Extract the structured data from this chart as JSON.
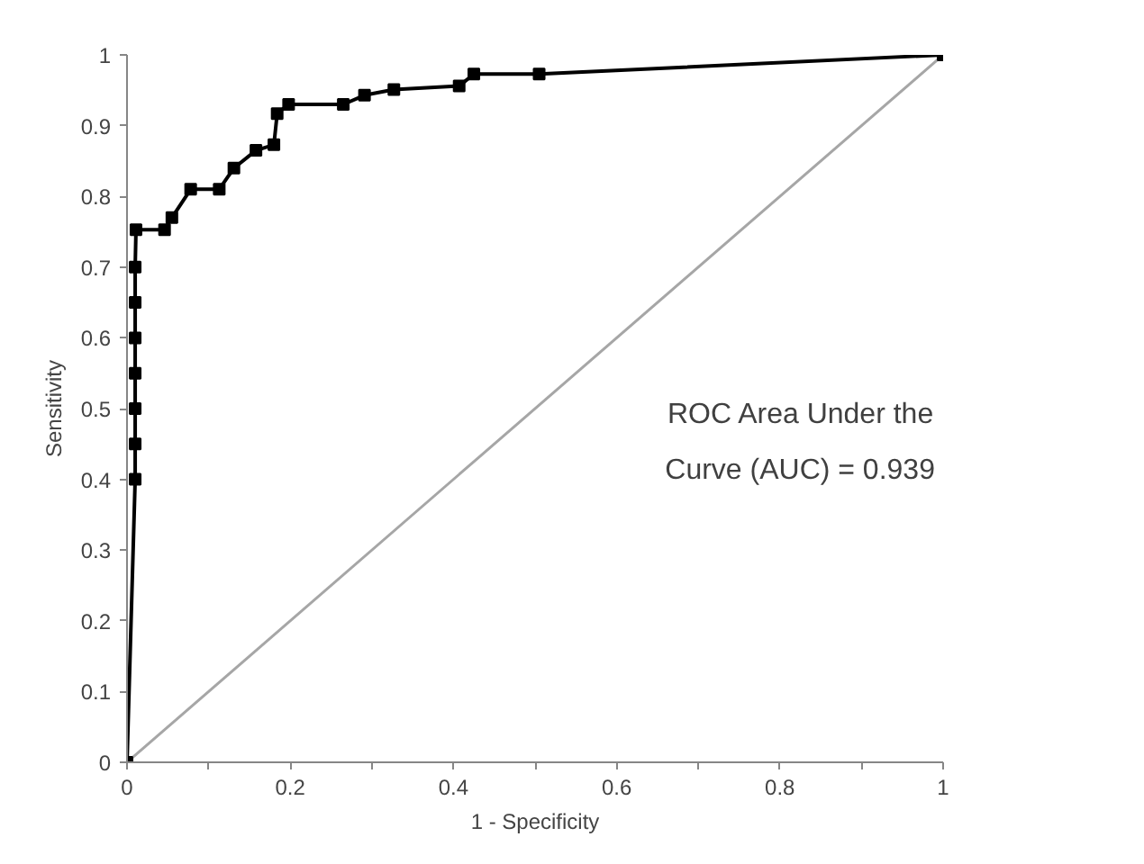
{
  "chart_data": {
    "type": "line",
    "xlabel": "1 - Specificity",
    "ylabel": "Sensitivity",
    "xlim": [
      0,
      1
    ],
    "ylim": [
      0,
      1
    ],
    "xticks": [
      0,
      {
        "value": 0.1,
        "label": null
      },
      0.2,
      {
        "value": 0.3,
        "label": null
      },
      0.4,
      {
        "value": 0.5,
        "label": null
      },
      0.6,
      {
        "value": 0.7,
        "label": null
      },
      0.8,
      {
        "value": 0.9,
        "label": null
      },
      1
    ],
    "yticks": [
      0,
      0.1,
      0.2,
      0.3,
      0.4,
      0.5,
      0.6,
      0.7,
      0.8,
      0.9,
      1
    ],
    "grid": false,
    "marker": "square",
    "line_style": "solid",
    "series": [
      {
        "color": "#000000",
        "x": [
          0,
          0.01,
          0.01,
          0.01,
          0.01,
          0.01,
          0.01,
          0.01,
          0.011,
          0.046,
          0.055,
          0.078,
          0.113,
          0.131,
          0.158,
          0.18,
          0.184,
          0.198,
          0.265,
          0.291,
          0.327,
          0.407,
          0.425,
          0.505,
          1
        ],
        "values": [
          0,
          0.4,
          0.45,
          0.5,
          0.55,
          0.6,
          0.65,
          0.7,
          0.753,
          0.753,
          0.77,
          0.81,
          0.81,
          0.84,
          0.865,
          0.873,
          0.917,
          0.93,
          0.93,
          0.943,
          0.951,
          0.956,
          0.973,
          0.973,
          1
        ]
      },
      {
        "color": "#a6a6a6",
        "x": [
          0,
          1
        ],
        "values": [
          0,
          1
        ],
        "marker": "none"
      }
    ],
    "annotations": [
      {
        "text": "ROC Area Under the Curve (AUC) = 0.939"
      }
    ]
  }
}
